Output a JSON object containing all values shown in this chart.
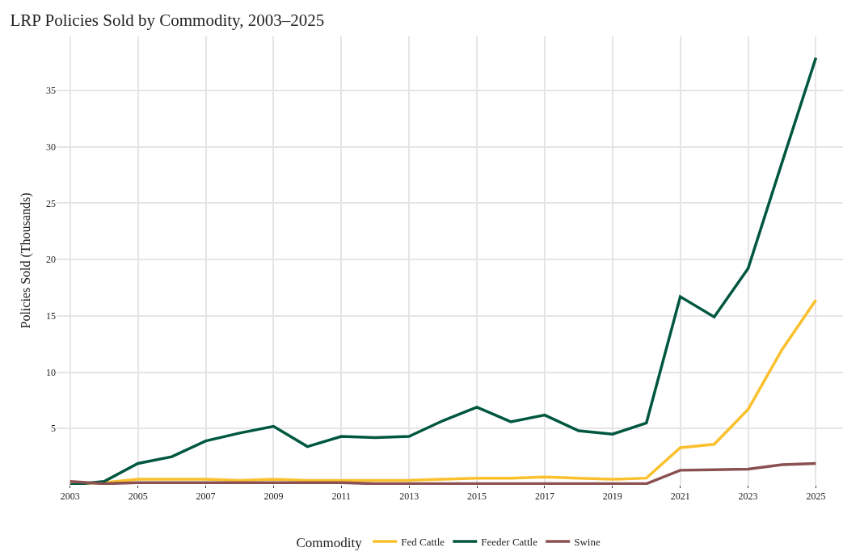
{
  "chart_data": {
    "type": "line",
    "title": "LRP Policies Sold by Commodity, 2003–2025",
    "ylabel": "Policies Sold (Thousands)",
    "legend_title": "Commodity",
    "legend": "bottom",
    "grid": true,
    "line_style": "solid",
    "marker": "none",
    "x": [
      2003,
      2004,
      2005,
      2006,
      2007,
      2008,
      2009,
      2010,
      2011,
      2012,
      2013,
      2014,
      2015,
      2016,
      2017,
      2018,
      2019,
      2020,
      2021,
      2022,
      2023,
      2024,
      2025
    ],
    "xlim": [
      2002.6,
      2025.8
    ],
    "xticks": [
      2003,
      2005,
      2007,
      2009,
      2011,
      2013,
      2015,
      2017,
      2019,
      2021,
      2023,
      2025
    ],
    "ylim": [
      0,
      39.8
    ],
    "yticks": [
      5,
      10,
      15,
      20,
      25,
      30,
      35
    ],
    "series": [
      {
        "name": "Fed Cattle",
        "color": "#fbc02d",
        "values": [
          0.1,
          0.2,
          0.5,
          0.5,
          0.5,
          0.4,
          0.5,
          0.4,
          0.4,
          0.4,
          0.4,
          0.5,
          0.6,
          0.6,
          0.7,
          0.6,
          0.5,
          0.6,
          3.3,
          3.6,
          6.7,
          12.0,
          16.4
        ]
      },
      {
        "name": "Feeder Cattle",
        "color": "#00573f",
        "values": [
          0.0,
          0.3,
          1.9,
          2.5,
          3.9,
          4.6,
          5.2,
          3.4,
          4.3,
          4.2,
          4.3,
          5.7,
          6.9,
          5.6,
          6.2,
          4.8,
          4.5,
          5.5,
          16.7,
          14.9,
          19.2,
          28.6,
          37.9
        ]
      },
      {
        "name": "Swine",
        "color": "#8b5152",
        "values": [
          0.3,
          0.1,
          0.2,
          0.2,
          0.2,
          0.2,
          0.2,
          0.2,
          0.2,
          0.1,
          0.1,
          0.1,
          0.1,
          0.1,
          0.1,
          0.1,
          0.1,
          0.1,
          1.3,
          1.35,
          1.4,
          1.8,
          1.9
        ]
      }
    ]
  }
}
